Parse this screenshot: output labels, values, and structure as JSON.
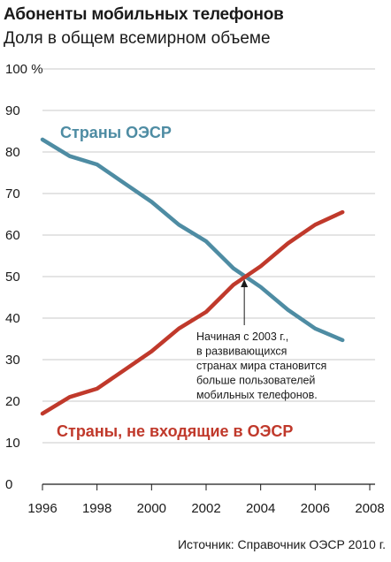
{
  "chart_data": {
    "type": "line",
    "title": "Абоненты мобильных телефонов",
    "subtitle": "Доля в общем всемирном объеме",
    "ylim": [
      0,
      100
    ],
    "xlim": [
      1996,
      2008
    ],
    "y_ticks": [
      "0",
      "10",
      "20",
      "30",
      "40",
      "50",
      "60",
      "70",
      "80",
      "90",
      "100 %"
    ],
    "x_ticks": [
      "1996",
      "1998",
      "2000",
      "2002",
      "2004",
      "2006",
      "2008"
    ],
    "grid": true,
    "x": [
      1996,
      1997,
      1998,
      1999,
      2000,
      2001,
      2002,
      2003,
      2004,
      2005,
      2006,
      2007
    ],
    "series": [
      {
        "name": "Страны ОЭСР",
        "color": "#4e8ca3",
        "values": [
          83,
          79,
          77,
          72.5,
          68,
          62.5,
          58.5,
          52,
          47.5,
          42,
          37.5,
          34.7
        ]
      },
      {
        "name": "Страны, не входящие в ОЭСР",
        "color": "#c0392b",
        "values": [
          17,
          21,
          23,
          27.5,
          32,
          37.5,
          41.5,
          48,
          52.5,
          58,
          62.5,
          65.5
        ]
      }
    ],
    "annotation": {
      "lines": [
        "Начиная с 2003 г.,",
        "в развивающихся",
        "странах мира становится",
        "больше пользователей",
        "мобильных телефонов."
      ],
      "point": [
        2003.4,
        50
      ]
    }
  },
  "source": "Источник: Справочник ОЭСР 2010 г."
}
